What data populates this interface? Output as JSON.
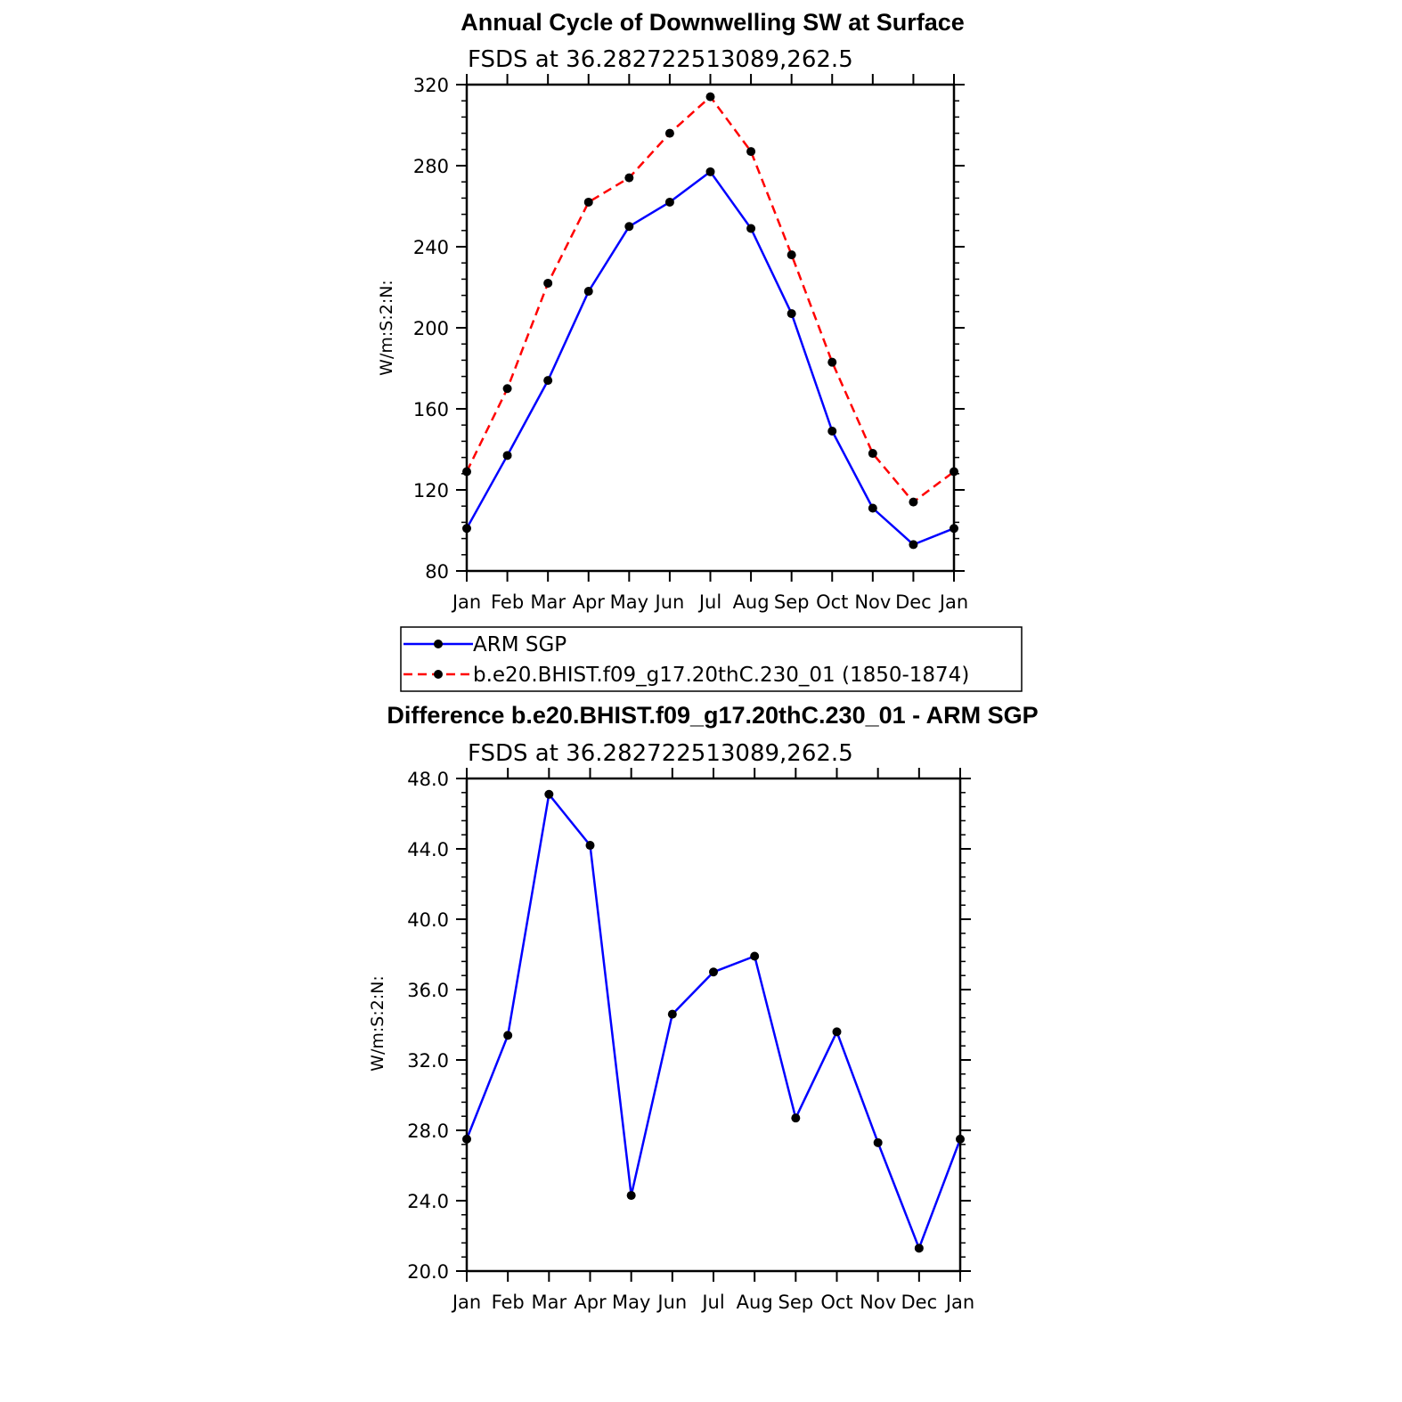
{
  "chart_data": [
    {
      "type": "line",
      "title": "Annual Cycle of Downwelling SW at Surface",
      "subtitle": "FSDS at 36.282722513089,262.5",
      "ylabel": "W/m:S:2:N:",
      "xlabel": "",
      "categories": [
        "Jan",
        "Feb",
        "Mar",
        "Apr",
        "May",
        "Jun",
        "Jul",
        "Aug",
        "Sep",
        "Oct",
        "Nov",
        "Dec",
        "Jan"
      ],
      "ylim": [
        80,
        320
      ],
      "yticks": [
        "80",
        "120",
        "160",
        "200",
        "240",
        "280",
        "320"
      ],
      "series": [
        {
          "name": "ARM SGP",
          "color": "#0000ff",
          "dash": "solid",
          "values": [
            101,
            137,
            174,
            218,
            250,
            262,
            277,
            249,
            207,
            149,
            111,
            93,
            101
          ]
        },
        {
          "name": "b.e20.BHIST.f09_g17.20thC.230_01 (1850-1874)",
          "color": "#ff0000",
          "dash": "dashed",
          "values": [
            129,
            170,
            222,
            262,
            274,
            296,
            314,
            287,
            236,
            183,
            138,
            114,
            129
          ]
        }
      ],
      "legend": "bottom",
      "grid": false
    },
    {
      "type": "line",
      "title": "Difference b.e20.BHIST.f09_g17.20thC.230_01 - ARM SGP",
      "subtitle": "FSDS at 36.282722513089,262.5",
      "ylabel": "W/m:S:2:N:",
      "xlabel": "",
      "categories": [
        "Jan",
        "Feb",
        "Mar",
        "Apr",
        "May",
        "Jun",
        "Jul",
        "Aug",
        "Sep",
        "Oct",
        "Nov",
        "Dec",
        "Jan"
      ],
      "ylim": [
        20,
        48
      ],
      "yticks": [
        "20.0",
        "24.0",
        "28.0",
        "32.0",
        "36.0",
        "40.0",
        "44.0",
        "48.0"
      ],
      "series": [
        {
          "color": "#0000ff",
          "dash": "solid",
          "values": [
            27.5,
            33.4,
            47.1,
            44.2,
            24.3,
            34.6,
            37.0,
            37.9,
            28.7,
            33.6,
            27.3,
            21.3,
            27.5
          ]
        }
      ],
      "grid": false
    }
  ]
}
